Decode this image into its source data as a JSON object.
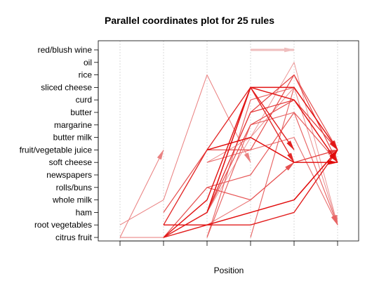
{
  "chart_data": {
    "type": "parallel-coordinates",
    "title": "Parallel coordinates plot for 25 rules",
    "xlabel": "Position",
    "ylabel": "",
    "items": [
      "citrus fruit",
      "root vegetables",
      "ham",
      "whole milk",
      "rolls/buns",
      "newspapers",
      "soft cheese",
      "fruit/vegetable juice",
      "butter milk",
      "margarine",
      "butter",
      "curd",
      "sliced cheese",
      "rice",
      "oil",
      "red/blush wine"
    ],
    "positions": [
      1,
      2,
      3,
      4,
      5,
      6
    ],
    "grid": "vertical dotted",
    "color_scale": [
      "#f0c8c8",
      "#e00000"
    ],
    "rules": [
      {
        "path": [
          "red/blush wine",
          "red/blush wine"
        ],
        "start": 4,
        "shade": 0.05
      },
      {
        "path": [
          "root vegetables",
          "whole milk",
          "rice",
          "soft cheese"
        ],
        "start": 1,
        "shade": 0.35
      },
      {
        "path": [
          "citrus fruit",
          "ham",
          "sliced cheese",
          "fruit/vegetable juice"
        ],
        "start": 2,
        "shade": 0.85
      },
      {
        "path": [
          "citrus fruit",
          "whole milk",
          "sliced cheese",
          "sliced cheese",
          "fruit/vegetable juice"
        ],
        "start": 2,
        "shade": 0.9
      },
      {
        "path": [
          "root vegetables",
          "fruit/vegetable juice",
          "sliced cheese",
          "soft cheese"
        ],
        "start": 2,
        "shade": 0.8
      },
      {
        "path": [
          "root vegetables",
          "root vegetables",
          "ham",
          "whole milk",
          "fruit/vegetable juice"
        ],
        "start": 2,
        "shade": 0.95
      },
      {
        "path": [
          "citrus fruit",
          "root vegetables",
          "root vegetables",
          "ham",
          "fruit/vegetable juice"
        ],
        "start": 2,
        "shade": 0.85
      },
      {
        "path": [
          "citrus fruit",
          "ham",
          "butter",
          "curd",
          "fruit/vegetable juice"
        ],
        "start": 2,
        "shade": 0.7
      },
      {
        "path": [
          "ham",
          "fruit/vegetable juice",
          "fruit/vegetable juice",
          "rice",
          "fruit/vegetable juice"
        ],
        "start": 2,
        "shade": 0.6
      },
      {
        "path": [
          "soft cheese",
          "fruit/vegetable juice",
          "butter milk",
          "root vegetables"
        ],
        "start": 3,
        "shade": 0.45
      },
      {
        "path": [
          "fruit/vegetable juice",
          "butter milk",
          "soft cheese",
          "soft cheese"
        ],
        "start": 3,
        "shade": 0.95
      },
      {
        "path": [
          "soft cheese",
          "butter milk",
          "sliced cheese",
          "root vegetables"
        ],
        "start": 3,
        "shade": 0.3
      },
      {
        "path": [
          "rolls/buns",
          "newspapers",
          "butter",
          "soft cheese"
        ],
        "start": 3,
        "shade": 0.55
      },
      {
        "path": [
          "ham",
          "sliced cheese",
          "curd",
          "soft cheese"
        ],
        "start": 3,
        "shade": 0.9
      },
      {
        "path": [
          "citrus fruit",
          "margarine",
          "butter",
          "root vegetables"
        ],
        "start": 3,
        "shade": 0.5
      },
      {
        "path": [
          "ham",
          "butter",
          "rice",
          "soft cheese"
        ],
        "start": 3,
        "shade": 0.65
      },
      {
        "path": [
          "ham",
          "butter milk",
          "oil",
          "root vegetables"
        ],
        "start": 3,
        "shade": 0.25
      },
      {
        "path": [
          "citrus fruit",
          "curd",
          "sliced cheese",
          "fruit/vegetable juice"
        ],
        "start": 3,
        "shade": 0.5
      },
      {
        "path": [
          "ham",
          "margarine",
          "curd",
          "soft cheese"
        ],
        "start": 3,
        "shade": 0.6
      },
      {
        "path": [
          "citrus fruit",
          "sliced cheese",
          "fruit/vegetable juice"
        ],
        "start": 4,
        "shade": 0.5
      },
      {
        "path": [
          "soft cheese",
          "fruit/vegetable juice"
        ],
        "start": 5,
        "shade": 0.7
      },
      {
        "path": [
          "whole milk",
          "fruit/vegetable juice"
        ],
        "start": 5,
        "shade": 0.75
      },
      {
        "path": [
          "citrus fruit",
          "fruit/vegetable juice"
        ],
        "start": 1,
        "shade": 0.35
      },
      {
        "path": [
          "citrus fruit",
          "citrus fruit",
          "root vegetables",
          "whole milk",
          "soft cheese"
        ],
        "start": 1,
        "shade": 0.4
      },
      {
        "path": [
          "citrus fruit",
          "rolls/buns",
          "whole milk",
          "soft cheese"
        ],
        "start": 2,
        "shade": 0.6
      }
    ]
  }
}
